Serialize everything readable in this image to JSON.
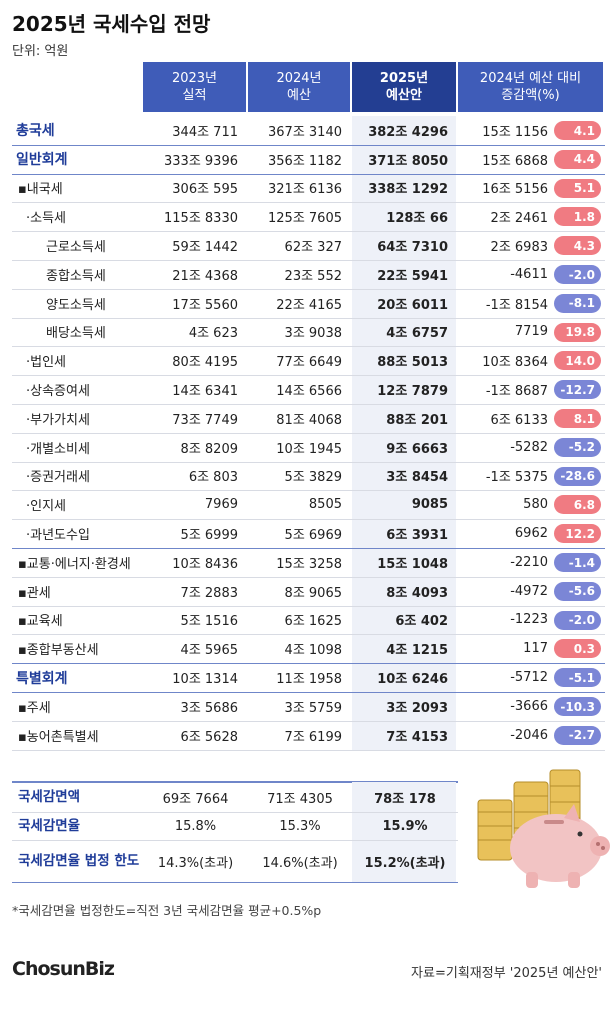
{
  "title": "2025년 국세수입 전망",
  "unit": "단위: 억원",
  "table": {
    "header": [
      [
        "2023년",
        "실적"
      ],
      [
        "2024년",
        "예산"
      ],
      [
        "2025년",
        "예산안"
      ],
      [
        "2024년 예산 대비",
        "증감액(%)"
      ]
    ],
    "rows": [
      [
        "총국세",
        "344조 711",
        "367조 3140",
        "382조 4296",
        "15조 1156",
        "4.1"
      ],
      [
        "일반회계",
        "333조 9396",
        "356조 1182",
        "371조 8050",
        "15조 6868",
        "4.4"
      ],
      [
        "▪내국세",
        "306조 595",
        "321조 6136",
        "338조 1292",
        "16조 5156",
        "5.1"
      ],
      [
        "·소득세",
        "115조 8330",
        "125조 7605",
        "128조 66",
        "2조 2461",
        "1.8"
      ],
      [
        "근로소득세",
        "59조 1442",
        "62조 327",
        "64조 7310",
        "2조 6983",
        "4.3"
      ],
      [
        "종합소득세",
        "21조 4368",
        "23조 552",
        "22조 5941",
        "-4611",
        "-2.0"
      ],
      [
        "양도소득세",
        "17조 5560",
        "22조 4165",
        "20조 6011",
        "-1조 8154",
        "-8.1"
      ],
      [
        "배당소득세",
        "4조 623",
        "3조 9038",
        "4조 6757",
        "7719",
        "19.8"
      ],
      [
        "·법인세",
        "80조 4195",
        "77조 6649",
        "88조 5013",
        "10조 8364",
        "14.0"
      ],
      [
        "·상속증여세",
        "14조 6341",
        "14조 6566",
        "12조 7879",
        "-1조 8687",
        "-12.7"
      ],
      [
        "·부가가치세",
        "73조 7749",
        "81조 4068",
        "88조 201",
        "6조 6133",
        "8.1"
      ],
      [
        "·개별소비세",
        "8조 8209",
        "10조 1945",
        "9조 6663",
        "-5282",
        "-5.2"
      ],
      [
        "·증권거래세",
        "6조 803",
        "5조 3829",
        "3조 8454",
        "-1조 5375",
        "-28.6"
      ],
      [
        "·인지세",
        "7969",
        "8505",
        "9085",
        "580",
        "6.8"
      ],
      [
        "·과년도수입",
        "5조 6999",
        "5조 6969",
        "6조 3931",
        "6962",
        "12.2"
      ],
      [
        "▪교통·에너지·환경세",
        "10조 8436",
        "15조 3258",
        "15조 1048",
        "-2210",
        "-1.4"
      ],
      [
        "▪관세",
        "7조 2883",
        "8조 9065",
        "8조 4093",
        "-4972",
        "-5.6"
      ],
      [
        "▪교육세",
        "5조 1516",
        "6조 1625",
        "6조 402",
        "-1223",
        "-2.0"
      ],
      [
        "▪종합부동산세",
        "4조 5965",
        "4조 1098",
        "4조 1215",
        "117",
        "0.3"
      ],
      [
        "특별회계",
        "10조 1314",
        "11조 1958",
        "10조 6246",
        "-5712",
        "-5.1"
      ],
      [
        "▪주세",
        "3조 5686",
        "3조 5759",
        "3조 2093",
        "-3666",
        "-10.3"
      ],
      [
        "▪농어촌특별세",
        "6조 5628",
        "7조 6199",
        "7조 4153",
        "-2046",
        "-2.7"
      ]
    ]
  },
  "summary": {
    "rows": [
      [
        "국세감면액",
        "69조 7664",
        "71조 4305",
        "78조 178"
      ],
      [
        "국세감면율",
        "15.8%",
        "15.3%",
        "15.9%"
      ],
      [
        "국세감면율 법정 한도",
        "14.3%(초과)",
        "14.6%(초과)",
        "15.2%(초과)"
      ]
    ]
  },
  "footnote": "*국세감면율 법정한도=직전 3년 국세감면율 평균+0.5%p",
  "logo": "ChosunBiz",
  "source": "자료=기획재정부 '2025년 예산안'"
}
